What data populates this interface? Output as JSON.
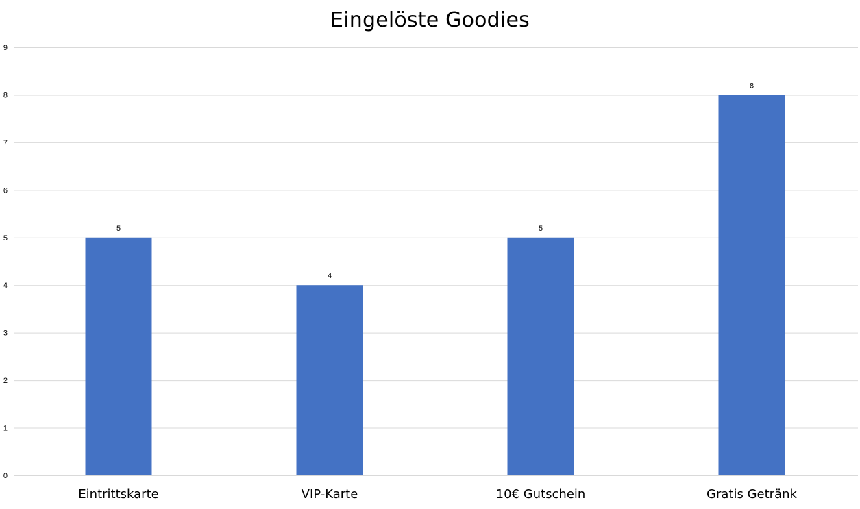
{
  "chart_data": {
    "type": "bar",
    "title": "Eingelöste Goodies",
    "categories": [
      "Eintrittskarte",
      "VIP-Karte",
      "10€ Gutschein",
      "Gratis Getränk"
    ],
    "values": [
      5,
      4,
      5,
      8
    ],
    "data_labels": [
      "5",
      "4",
      "5",
      "8"
    ],
    "xlabel": "",
    "ylabel": "",
    "ylim": [
      0,
      9
    ],
    "yticks": [
      "0",
      "1",
      "2",
      "3",
      "4",
      "5",
      "6",
      "7",
      "8",
      "9"
    ],
    "grid": true,
    "legend": "none",
    "bar_color": "#4472C4"
  }
}
